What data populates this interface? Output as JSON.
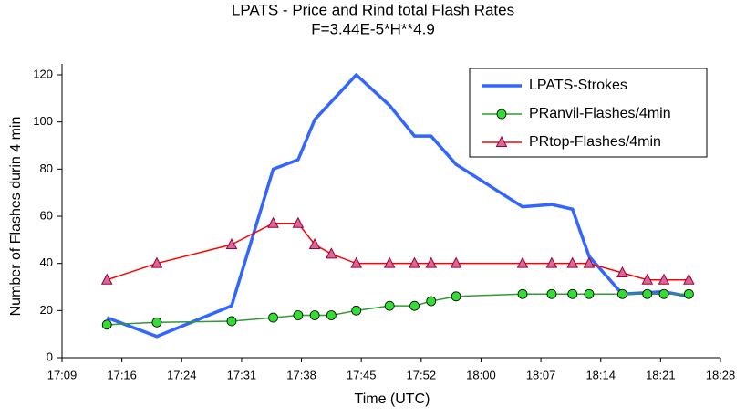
{
  "chart_data": {
    "type": "line",
    "title": "LPATS - Price and Rind total Flash Rates",
    "subtitle": "F=3.44E-5*H**4.9",
    "x_label": "Time (UTC)",
    "y_label": "Number of Flashes durin 4 min",
    "xlim": [
      1029.6,
      1108.8
    ],
    "xticks": [
      {
        "value": 1029.6,
        "label": "17:09"
      },
      {
        "value": 1036.8,
        "label": "17:16"
      },
      {
        "value": 1044,
        "label": "17:24"
      },
      {
        "value": 1051.2,
        "label": "17:31"
      },
      {
        "value": 1058.4,
        "label": "17:38"
      },
      {
        "value": 1065.6,
        "label": "17:45"
      },
      {
        "value": 1072.8,
        "label": "17:52"
      },
      {
        "value": 1080,
        "label": "18:00"
      },
      {
        "value": 1087.2,
        "label": "18:07"
      },
      {
        "value": 1094.4,
        "label": "18:14"
      },
      {
        "value": 1101.6,
        "label": "18:21"
      },
      {
        "value": 1108.8,
        "label": "18:28"
      }
    ],
    "ylim": [
      0,
      120
    ],
    "yticks": [
      0,
      20,
      40,
      60,
      80,
      100,
      120
    ],
    "legend": "upper right",
    "series": [
      {
        "name": "LPATS-Strokes",
        "color": "#3366ff",
        "marker": "none",
        "x": [
          1035,
          1041,
          1050,
          1055,
          1058,
          1060,
          1065,
          1069,
          1072,
          1074,
          1077,
          1085,
          1088.5,
          1091,
          1093,
          1097,
          1102,
          1105
        ],
        "values": [
          17,
          9,
          22,
          80,
          84,
          101,
          120,
          107,
          94,
          94,
          82,
          64,
          65,
          63,
          43,
          27,
          28,
          26
        ]
      },
      {
        "name": "PRanvil-Flashes/4min",
        "color": "#339933",
        "marker": "circle",
        "marker_color": "#33dd33",
        "x": [
          1035,
          1041,
          1050,
          1055,
          1058,
          1060,
          1062,
          1065,
          1069,
          1072,
          1074,
          1077,
          1085,
          1088.5,
          1091,
          1093,
          1097,
          1100,
          1102,
          1105
        ],
        "values": [
          14,
          15,
          15.5,
          17,
          18,
          18,
          18,
          20,
          22,
          22,
          24,
          26,
          27,
          27,
          27,
          27,
          27,
          27,
          27,
          27
        ]
      },
      {
        "name": "PRtop-Flashes/4min",
        "color": "#ff0000",
        "marker": "triangle",
        "marker_color": "#dd6699",
        "x": [
          1035,
          1041,
          1050,
          1055,
          1058,
          1060,
          1062,
          1065,
          1069,
          1072,
          1074,
          1077,
          1085,
          1088.5,
          1091,
          1093,
          1097,
          1100,
          1102,
          1105
        ],
        "values": [
          33,
          40,
          48,
          57,
          57,
          48,
          44,
          40,
          40,
          40,
          40,
          40,
          40,
          40,
          40,
          40,
          36,
          33,
          33,
          33
        ]
      }
    ]
  }
}
